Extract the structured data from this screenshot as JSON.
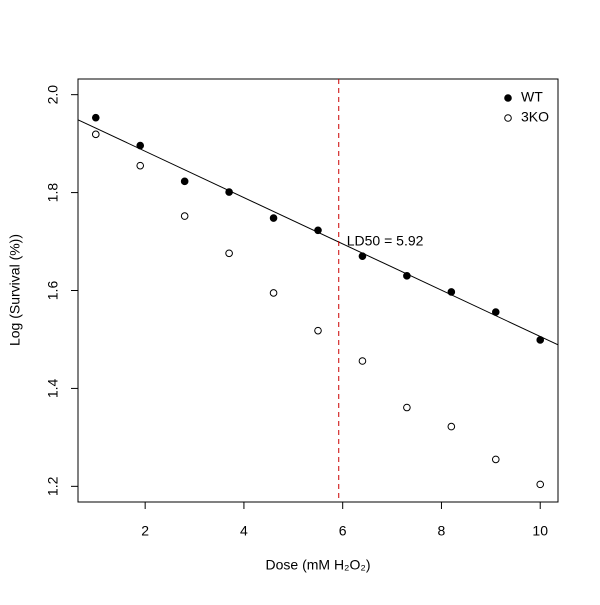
{
  "chart_data": {
    "type": "scatter",
    "x_label": "Dose (mM H₂O₂)",
    "y_label": "Log (Survival (%))",
    "x": [
      1,
      1.9,
      2.8,
      3.7,
      4.6,
      5.5,
      6.4,
      7.3,
      8.2,
      9.1,
      10
    ],
    "series": [
      {
        "name": "WT",
        "color": "#000000",
        "filled": true,
        "values": [
          1.953,
          1.896,
          1.823,
          1.801,
          1.748,
          1.723,
          1.67,
          1.63,
          1.597,
          1.556,
          1.499
        ]
      },
      {
        "name": "3KO",
        "color": "#000000",
        "filled": false,
        "values": [
          1.919,
          1.855,
          1.752,
          1.676,
          1.595,
          1.518,
          1.456,
          1.361,
          1.322,
          1.255,
          1.204
        ]
      }
    ],
    "fit": {
      "intercept": 1.979,
      "slope": -0.0473,
      "color": "#000000"
    },
    "vline": {
      "x": 5.92,
      "color": "#cc0000"
    },
    "annotation": {
      "text": "LD50 = 5.92",
      "color": "#e31a1c"
    },
    "xlim": [
      0.64,
      10.36
    ],
    "ylim": [
      1.168,
      2.032
    ],
    "xticks": [
      2,
      4,
      6,
      8,
      10
    ],
    "yticks": [
      {
        "value": 1.2,
        "label": "1.2"
      },
      {
        "value": 1.4,
        "label": "1.4"
      },
      {
        "value": 1.6,
        "label": "1.6"
      },
      {
        "value": 1.8,
        "label": "1.8"
      },
      {
        "value": 2.0,
        "label": "2.0"
      }
    ],
    "legend": "top-right"
  }
}
